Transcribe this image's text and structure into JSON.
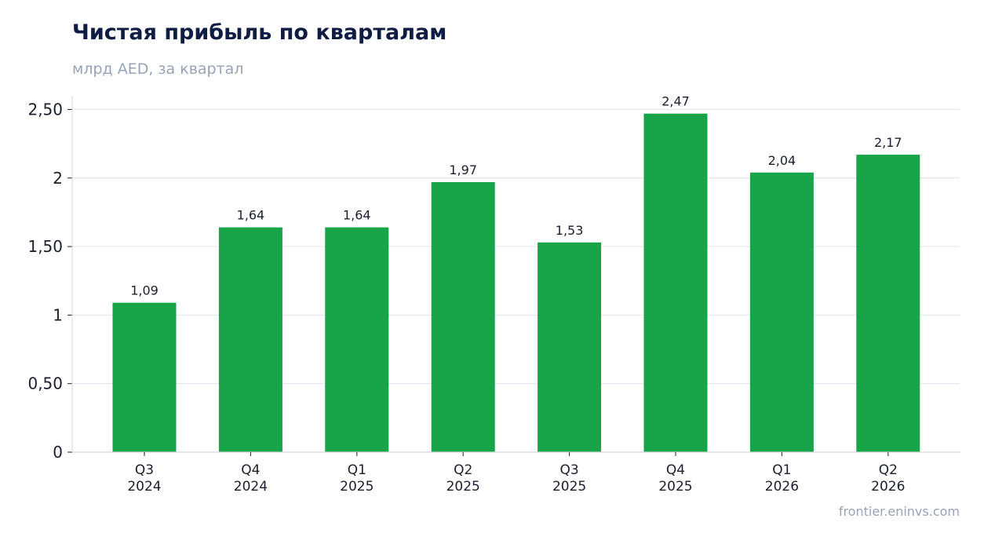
{
  "header": {
    "title": "Чистая прибыль по кварталам",
    "subtitle": "млрд AED, за квартал"
  },
  "footer": {
    "source": "frontier.eninvs.com"
  },
  "colors": {
    "bar": "#19a44a",
    "grid": "#e3e7ee",
    "axis": "#d3d7de",
    "title": "#0f1d45",
    "muted": "#97a3b6",
    "text": "#1a1f2e"
  },
  "chart_data": {
    "type": "bar",
    "title": "Чистая прибыль по кварталам",
    "subtitle": "млрд AED, за квартал",
    "categories": [
      [
        "Q3",
        "2024"
      ],
      [
        "Q4",
        "2024"
      ],
      [
        "Q1",
        "2025"
      ],
      [
        "Q2",
        "2025"
      ],
      [
        "Q3",
        "2025"
      ],
      [
        "Q4",
        "2025"
      ],
      [
        "Q1",
        "2026"
      ],
      [
        "Q2",
        "2026"
      ]
    ],
    "values": [
      1.09,
      1.64,
      1.64,
      1.97,
      1.53,
      2.47,
      2.04,
      2.17
    ],
    "value_labels": [
      "1,09",
      "1,64",
      "1,64",
      "1,97",
      "1,53",
      "2,47",
      "2,04",
      "2,17"
    ],
    "yticks": [
      0,
      0.5,
      1,
      1.5,
      2,
      2.5
    ],
    "ytick_labels": [
      "0",
      "0,50",
      "1",
      "1,50",
      "2",
      "2,50"
    ],
    "ylim": [
      0,
      2.6
    ],
    "xlabel": "",
    "ylabel": "",
    "grid": true,
    "legend": "none"
  }
}
